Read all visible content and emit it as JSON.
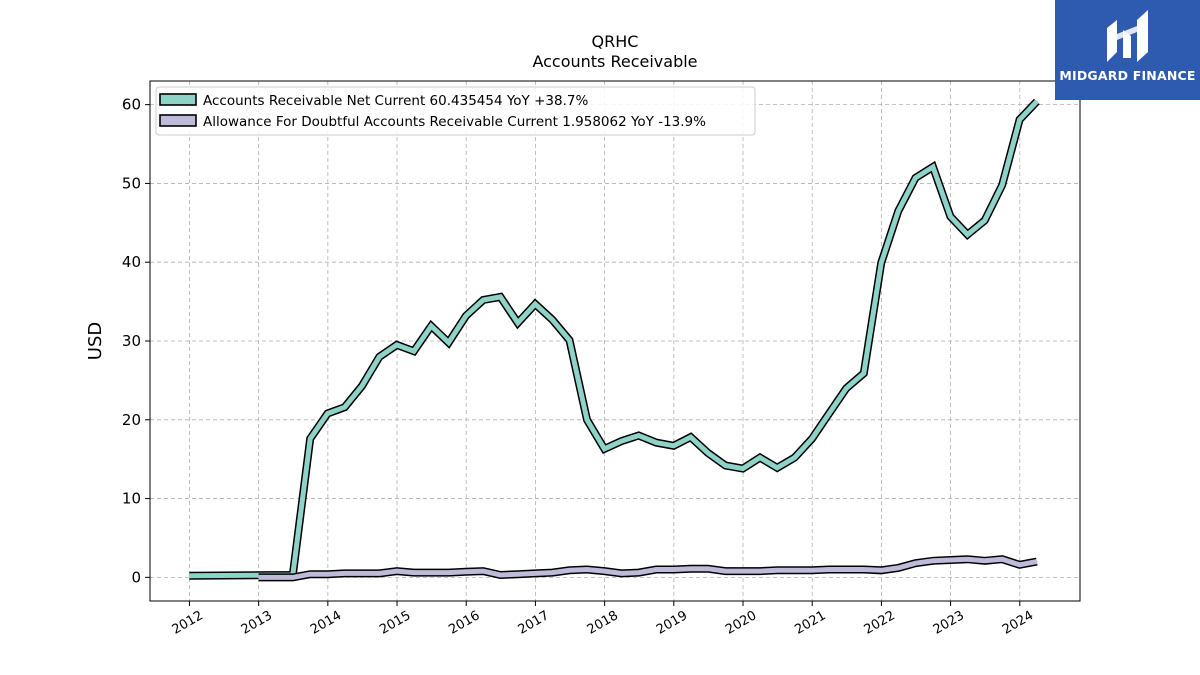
{
  "brand": {
    "name": "MIDGARD FINANCE",
    "bg": "#2e5bb0"
  },
  "chart_data": {
    "type": "line",
    "title": "QRHC",
    "subtitle": "Accounts Receivable",
    "ylabel": "USD",
    "xlabel": "",
    "ylim": [
      -3,
      63
    ],
    "xlim": [
      2011.43,
      2024.87
    ],
    "yticks": [
      0,
      10,
      20,
      30,
      40,
      50,
      60
    ],
    "xticks": [
      "2012",
      "2013",
      "2014",
      "2015",
      "2016",
      "2017",
      "2018",
      "2019",
      "2020",
      "2021",
      "2022",
      "2023",
      "2024"
    ],
    "grid": true,
    "legend_position": "top-left",
    "series": [
      {
        "name": "Accounts Receivable Net Current",
        "legend": "Accounts Receivable Net Current  60.435454 YoY +38.7%",
        "color": "#8dd3c7",
        "points": [
          [
            "2012-01-01",
            0.2
          ],
          [
            "2013-06-30",
            0.3
          ],
          [
            "2013-09-30",
            17.6
          ],
          [
            "2013-12-31",
            20.8
          ],
          [
            "2014-03-31",
            21.6
          ],
          [
            "2014-06-30",
            24.3
          ],
          [
            "2014-09-30",
            28.0
          ],
          [
            "2014-12-31",
            29.5
          ],
          [
            "2015-03-31",
            28.7
          ],
          [
            "2015-06-30",
            31.9
          ],
          [
            "2015-09-30",
            29.8
          ],
          [
            "2015-12-31",
            33.2
          ],
          [
            "2016-03-31",
            35.2
          ],
          [
            "2016-06-30",
            35.6
          ],
          [
            "2016-09-30",
            32.3
          ],
          [
            "2016-12-31",
            34.7
          ],
          [
            "2017-03-31",
            32.7
          ],
          [
            "2017-06-30",
            30.1
          ],
          [
            "2017-09-30",
            20.0
          ],
          [
            "2017-12-31",
            16.3
          ],
          [
            "2018-03-31",
            17.3
          ],
          [
            "2018-06-30",
            18.0
          ],
          [
            "2018-09-30",
            17.1
          ],
          [
            "2018-12-31",
            16.7
          ],
          [
            "2019-03-31",
            17.8
          ],
          [
            "2019-06-30",
            15.8
          ],
          [
            "2019-09-30",
            14.2
          ],
          [
            "2019-12-31",
            13.8
          ],
          [
            "2020-03-31",
            15.2
          ],
          [
            "2020-06-30",
            13.9
          ],
          [
            "2020-09-30",
            15.2
          ],
          [
            "2020-12-31",
            17.6
          ],
          [
            "2021-03-31",
            20.8
          ],
          [
            "2021-06-30",
            24.0
          ],
          [
            "2021-09-30",
            25.9
          ],
          [
            "2021-12-31",
            39.9
          ],
          [
            "2022-03-31",
            46.5
          ],
          [
            "2022-06-30",
            50.7
          ],
          [
            "2022-09-30",
            52.1
          ],
          [
            "2022-12-31",
            45.8
          ],
          [
            "2023-03-31",
            43.5
          ],
          [
            "2023-06-30",
            45.3
          ],
          [
            "2023-09-30",
            49.8
          ],
          [
            "2023-12-31",
            58.1
          ],
          [
            "2024-03-31",
            60.4
          ]
        ]
      },
      {
        "name": "Allowance For Doubtful Accounts Receivable Current",
        "legend": "Allowance For Doubtful Accounts Receivable Current  1.958062 YoY -13.9%",
        "color": "#bebada",
        "points": [
          [
            "2013-01-01",
            0.0
          ],
          [
            "2013-06-30",
            0.0
          ],
          [
            "2013-09-30",
            0.4
          ],
          [
            "2013-12-31",
            0.4
          ],
          [
            "2014-03-31",
            0.5
          ],
          [
            "2014-06-30",
            0.5
          ],
          [
            "2014-09-30",
            0.5
          ],
          [
            "2014-12-31",
            0.8
          ],
          [
            "2015-03-31",
            0.6
          ],
          [
            "2015-06-30",
            0.6
          ],
          [
            "2015-09-30",
            0.6
          ],
          [
            "2015-12-31",
            0.7
          ],
          [
            "2016-03-31",
            0.8
          ],
          [
            "2016-06-30",
            0.3
          ],
          [
            "2016-09-30",
            0.4
          ],
          [
            "2016-12-31",
            0.5
          ],
          [
            "2017-03-31",
            0.6
          ],
          [
            "2017-06-30",
            0.9
          ],
          [
            "2017-09-30",
            1.0
          ],
          [
            "2017-12-31",
            0.8
          ],
          [
            "2018-03-31",
            0.5
          ],
          [
            "2018-06-30",
            0.6
          ],
          [
            "2018-09-30",
            1.0
          ],
          [
            "2018-12-31",
            1.0
          ],
          [
            "2019-03-31",
            1.1
          ],
          [
            "2019-06-30",
            1.1
          ],
          [
            "2019-09-30",
            0.8
          ],
          [
            "2019-12-31",
            0.8
          ],
          [
            "2020-03-31",
            0.8
          ],
          [
            "2020-06-30",
            0.9
          ],
          [
            "2020-09-30",
            0.9
          ],
          [
            "2020-12-31",
            0.9
          ],
          [
            "2021-03-31",
            1.0
          ],
          [
            "2021-06-30",
            1.0
          ],
          [
            "2021-09-30",
            1.0
          ],
          [
            "2021-12-31",
            0.9
          ],
          [
            "2022-03-31",
            1.2
          ],
          [
            "2022-06-30",
            1.8
          ],
          [
            "2022-09-30",
            2.1
          ],
          [
            "2022-12-31",
            2.2
          ],
          [
            "2023-03-31",
            2.3
          ],
          [
            "2023-06-30",
            2.1
          ],
          [
            "2023-09-30",
            2.3
          ],
          [
            "2023-12-31",
            1.6
          ],
          [
            "2024-03-31",
            2.0
          ]
        ]
      }
    ]
  }
}
